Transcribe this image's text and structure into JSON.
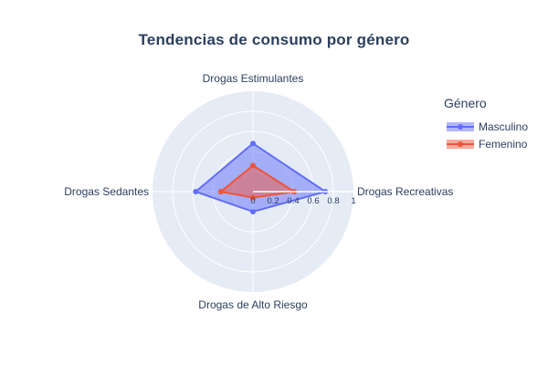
{
  "chart_data": {
    "type": "radar",
    "title": "Tendencias de consumo por género",
    "categories": [
      "Drogas Recreativas",
      "Drogas Estimulantes",
      "Drogas Sedantes",
      "Drogas de Alto Riesgo"
    ],
    "radial_range": [
      0,
      1
    ],
    "radial_ticks": [
      "0",
      "0.2",
      "0.4",
      "0.6",
      "0.8",
      "1"
    ],
    "legend_title": "Género",
    "legend_position": "top-right",
    "grid": true,
    "series": [
      {
        "name": "Masculino",
        "values": [
          0.72,
          0.48,
          0.57,
          0.2
        ],
        "color": "#636efa"
      },
      {
        "name": "Femenino",
        "values": [
          0.41,
          0.26,
          0.32,
          0.06
        ],
        "color": "#ef553b"
      }
    ]
  }
}
